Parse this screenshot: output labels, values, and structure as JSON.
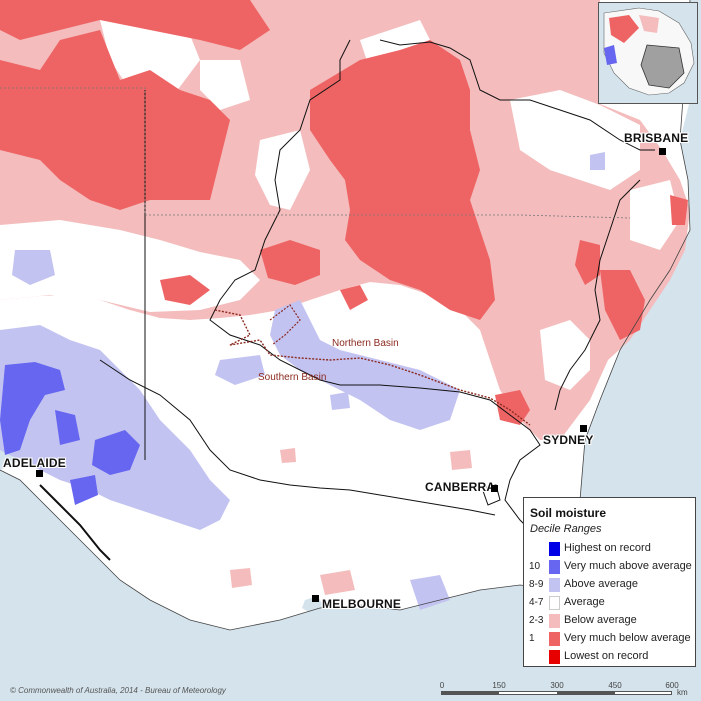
{
  "cities": [
    {
      "id": "brisbane",
      "name": "BRISBANE"
    },
    {
      "id": "sydney",
      "name": "SYDNEY"
    },
    {
      "id": "canberra",
      "name": "CANBERRA"
    },
    {
      "id": "melbourne",
      "name": "MELBOURNE"
    },
    {
      "id": "adelaide",
      "name": "ADELAIDE"
    }
  ],
  "basins": {
    "northern": "Northern Basin",
    "southern": "Southern Basin"
  },
  "legend": {
    "title": "Soil moisture",
    "subtitle": "Decile Ranges",
    "items": [
      {
        "code": "",
        "label": "Highest on record",
        "color": "#0000e6"
      },
      {
        "code": "10",
        "label": "Very much above average",
        "color": "#6666f0"
      },
      {
        "code": "8-9",
        "label": "Above average",
        "color": "#c3c3f2"
      },
      {
        "code": "4-7",
        "label": "Average",
        "color": "#ffffff"
      },
      {
        "code": "2-3",
        "label": "Below average",
        "color": "#f4bcbc"
      },
      {
        "code": "1",
        "label": "Very much below average",
        "color": "#ee6464"
      },
      {
        "code": "",
        "label": "Lowest on record",
        "color": "#e60000"
      }
    ]
  },
  "footer": {
    "copyright": "© Commonwealth of Australia, 2014 - Bureau of Meteorology"
  },
  "scale": {
    "ticks": [
      "0",
      "150",
      "300",
      "450",
      "600"
    ],
    "unit": "km"
  },
  "colors": {
    "ocean": "#d4e3ec",
    "very_below": "#ee6464",
    "below": "#f4bcbc",
    "above": "#c3c3f2",
    "very_above": "#6666f0",
    "boundary": "#111111",
    "basin_boundary": "#8b2a1f"
  }
}
